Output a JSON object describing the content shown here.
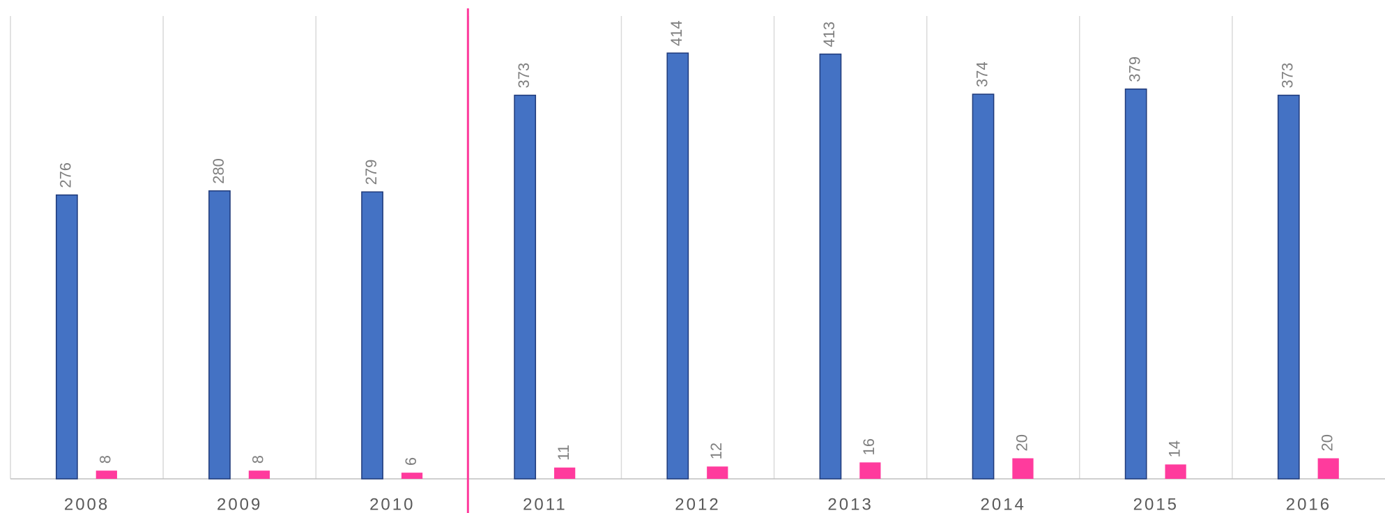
{
  "chart_data": {
    "type": "bar",
    "categories": [
      "2008",
      "2009",
      "2010",
      "2011",
      "2012",
      "2013",
      "2014",
      "2015",
      "2016"
    ],
    "series": [
      {
        "color": "#4472c4",
        "values": [
          276,
          280,
          279,
          373,
          414,
          413,
          374,
          379,
          373
        ]
      },
      {
        "color": "#ff3b9d",
        "values": [
          8,
          8,
          6,
          11,
          12,
          16,
          20,
          14,
          20
        ]
      }
    ],
    "ylim": [
      0,
      450
    ]
  }
}
